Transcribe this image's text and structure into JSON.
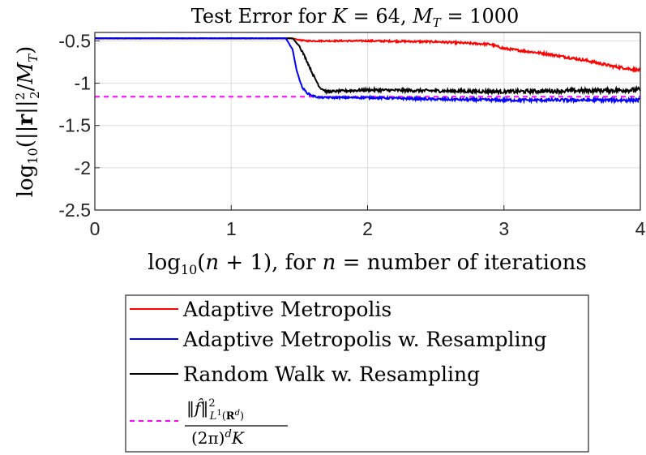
{
  "chart_data": {
    "type": "line",
    "title_prefix": "Test Error for ",
    "title_math": "K = 64, M_T = 1000",
    "xlabel_math": "log10(n+1)",
    "xlabel_suffix": ", for n = number of iterations",
    "ylabel_math": "log10(||r||_2^2 / M_T)",
    "xlim": [
      0,
      4
    ],
    "ylim": [
      -2.5,
      -0.4
    ],
    "xticks": [
      0,
      1,
      2,
      3,
      4
    ],
    "xtick_labels": [
      "0",
      "1",
      "2",
      "3",
      "4"
    ],
    "yticks": [
      -0.5,
      -1,
      -1.5,
      -2,
      -2.5
    ],
    "ytick_labels": [
      "-0.5",
      "-1",
      "-1.5",
      "-2",
      "-2.5"
    ],
    "grid": true,
    "legend_position": "below",
    "series": [
      {
        "name": "Adaptive Metropolis",
        "color": "#ff0000",
        "style": "solid",
        "noise": 0.012,
        "x": [
          0,
          1.45,
          1.5,
          1.55,
          2.0,
          2.5,
          2.9,
          3.0,
          3.3,
          3.6,
          3.8,
          4.0
        ],
        "y": [
          -0.47,
          -0.47,
          -0.49,
          -0.5,
          -0.5,
          -0.51,
          -0.54,
          -0.59,
          -0.65,
          -0.73,
          -0.8,
          -0.85
        ]
      },
      {
        "name": "Adaptive Metropolis w. Resampling",
        "color": "#0000ff",
        "style": "solid",
        "noise": 0.015,
        "x": [
          0,
          1.4,
          1.45,
          1.48,
          1.52,
          1.56,
          1.6,
          1.65,
          2.0,
          2.5,
          3.0,
          3.5,
          4.0
        ],
        "y": [
          -0.47,
          -0.47,
          -0.6,
          -0.85,
          -1.05,
          -1.12,
          -1.15,
          -1.17,
          -1.17,
          -1.19,
          -1.2,
          -1.2,
          -1.2
        ]
      },
      {
        "name": "Random Walk w. Resampling",
        "color": "#000000",
        "style": "solid",
        "noise": 0.02,
        "x": [
          0,
          1.45,
          1.5,
          1.55,
          1.6,
          1.65,
          1.7,
          2.0,
          2.5,
          3.0,
          3.5,
          4.0
        ],
        "y": [
          -0.47,
          -0.47,
          -0.56,
          -0.72,
          -0.9,
          -1.05,
          -1.1,
          -1.08,
          -1.09,
          -1.1,
          -1.09,
          -1.08
        ]
      },
      {
        "name_math": "||f^||_{L1(R^d)}^2 / ((2pi)^d K)",
        "color": "#ff00ff",
        "style": "dashed",
        "noise": 0,
        "x": [
          0,
          4
        ],
        "y": [
          -1.16,
          -1.16
        ]
      }
    ]
  }
}
